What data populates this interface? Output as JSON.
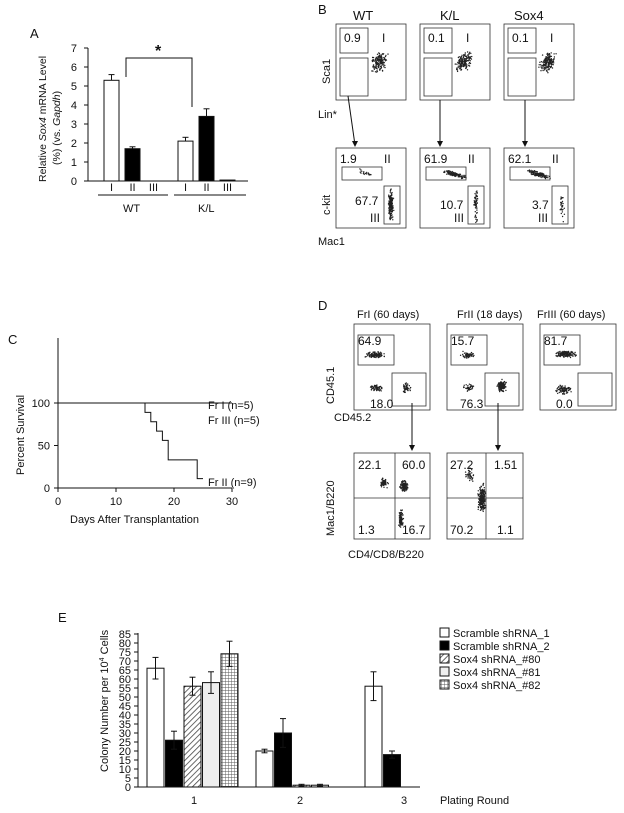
{
  "chart_data": [
    {
      "panel": "A",
      "type": "bar",
      "title": "",
      "ylabel_parts": [
        "Relative ",
        "Sox4",
        " mRNA Level",
        "(%) (vs. ",
        "Gapdh",
        ")"
      ],
      "ylim": [
        0,
        7
      ],
      "yticks": [
        "0",
        "1",
        "2",
        "3",
        "4",
        "5",
        "6",
        "7"
      ],
      "groups": [
        {
          "name": "WT",
          "categories": [
            "I",
            "II",
            "III"
          ],
          "values": [
            5.3,
            1.7,
            0.0
          ],
          "errors": [
            0.3,
            0.1,
            0.0
          ]
        },
        {
          "name": "K/L",
          "categories": [
            "I",
            "II",
            "III"
          ],
          "values": [
            2.1,
            3.4,
            0.05
          ],
          "errors": [
            0.2,
            0.4,
            0.0
          ]
        }
      ],
      "significance": "*",
      "colors": {
        "I": "#ffffff",
        "II": "#000000",
        "III": "#000000"
      }
    },
    {
      "panel": "B",
      "type": "scatter",
      "columns": [
        "WT",
        "K/L",
        "Sox4"
      ],
      "top_row": {
        "xlabel": "Lin*",
        "ylabel": "Sca1",
        "gate": "I",
        "values": [
          "0.9",
          "0.1",
          "0.1"
        ]
      },
      "bottom_row": {
        "xlabel": "Mac1",
        "ylabel": "c-kit",
        "gates": [
          "II",
          "III"
        ],
        "values_II": [
          "1.9",
          "61.9",
          "62.1"
        ],
        "values_III": [
          "67.7",
          "10.7",
          "3.7"
        ]
      }
    },
    {
      "panel": "C",
      "type": "line",
      "xlabel": "Days After Transplantation",
      "ylabel": "Percent Survival",
      "xlim": [
        0,
        30
      ],
      "ylim": [
        0,
        100
      ],
      "xticks": [
        "0",
        "10",
        "20",
        "30"
      ],
      "yticks": [
        "0",
        "50",
        "100"
      ],
      "series": [
        {
          "name": "Fr I (n=5)",
          "x": [
            0,
            30
          ],
          "y": [
            100,
            100
          ]
        },
        {
          "name": "Fr III (n=5)",
          "x": [
            0,
            30
          ],
          "y": [
            100,
            100
          ]
        },
        {
          "name": "Fr II (n=9)",
          "x": [
            0,
            15,
            15,
            16,
            16,
            17,
            17,
            18,
            18,
            19,
            19,
            24,
            24,
            25
          ],
          "y": [
            100,
            100,
            89,
            89,
            78,
            78,
            67,
            67,
            56,
            56,
            33,
            33,
            11,
            11
          ]
        }
      ]
    },
    {
      "panel": "D",
      "type": "scatter",
      "columns": [
        "FrI (60 days)",
        "FrII (18 days)",
        "FrIII (60 days)"
      ],
      "top_row": {
        "xlabel": "CD45.2",
        "ylabel": "CD45.1",
        "values_upper": [
          "64.9",
          "15.7",
          "81.7"
        ],
        "values_lower": [
          "18.0",
          "76.3",
          "0.0"
        ]
      },
      "bottom_row": {
        "xlabel": "CD4/CD8/B220",
        "ylabel": "Mac1/B220",
        "plots": [
          {
            "ul": "22.1",
            "ur": "60.0",
            "ll": "1.3",
            "lr": "16.7"
          },
          {
            "ul": "27.2",
            "ur": "1.51",
            "ll": "70.2",
            "lr": "1.1"
          }
        ]
      }
    },
    {
      "panel": "E",
      "type": "bar",
      "xlabel": "Plating Round",
      "ylabel_parts": [
        "Colony Number per 10",
        "4",
        " Cells"
      ],
      "ylim": [
        0,
        85
      ],
      "yticks": [
        "0",
        "5",
        "10",
        "15",
        "20",
        "25",
        "30",
        "35",
        "40",
        "45",
        "50",
        "55",
        "60",
        "65",
        "70",
        "75",
        "80",
        "85"
      ],
      "categories": [
        "1",
        "2",
        "3"
      ],
      "series": [
        {
          "name": "Scramble shRNA_1",
          "values": [
            66,
            20,
            56
          ],
          "errors": [
            6,
            1,
            8
          ],
          "fill": "#ffffff"
        },
        {
          "name": "Scramble shRNA_2",
          "values": [
            26,
            30,
            18
          ],
          "errors": [
            5,
            8,
            2
          ],
          "fill": "#000000"
        },
        {
          "name": "Sox4 shRNA_#80",
          "values": [
            56,
            1,
            0
          ],
          "errors": [
            5,
            0.5,
            0
          ],
          "fill": "hatch"
        },
        {
          "name": "Sox4 shRNA_#81",
          "values": [
            58,
            1,
            0
          ],
          "errors": [
            6,
            0.5,
            0
          ],
          "fill": "#eeeeee"
        },
        {
          "name": "Sox4 shRNA_#82",
          "values": [
            74,
            0,
            0
          ],
          "errors": [
            7,
            0,
            0
          ],
          "fill": "grid"
        }
      ]
    }
  ],
  "labels": {
    "A": "A",
    "B": "B",
    "C": "C",
    "D": "D",
    "E": "E"
  },
  "roman": {
    "I": "I",
    "II": "II",
    "III": "III"
  }
}
